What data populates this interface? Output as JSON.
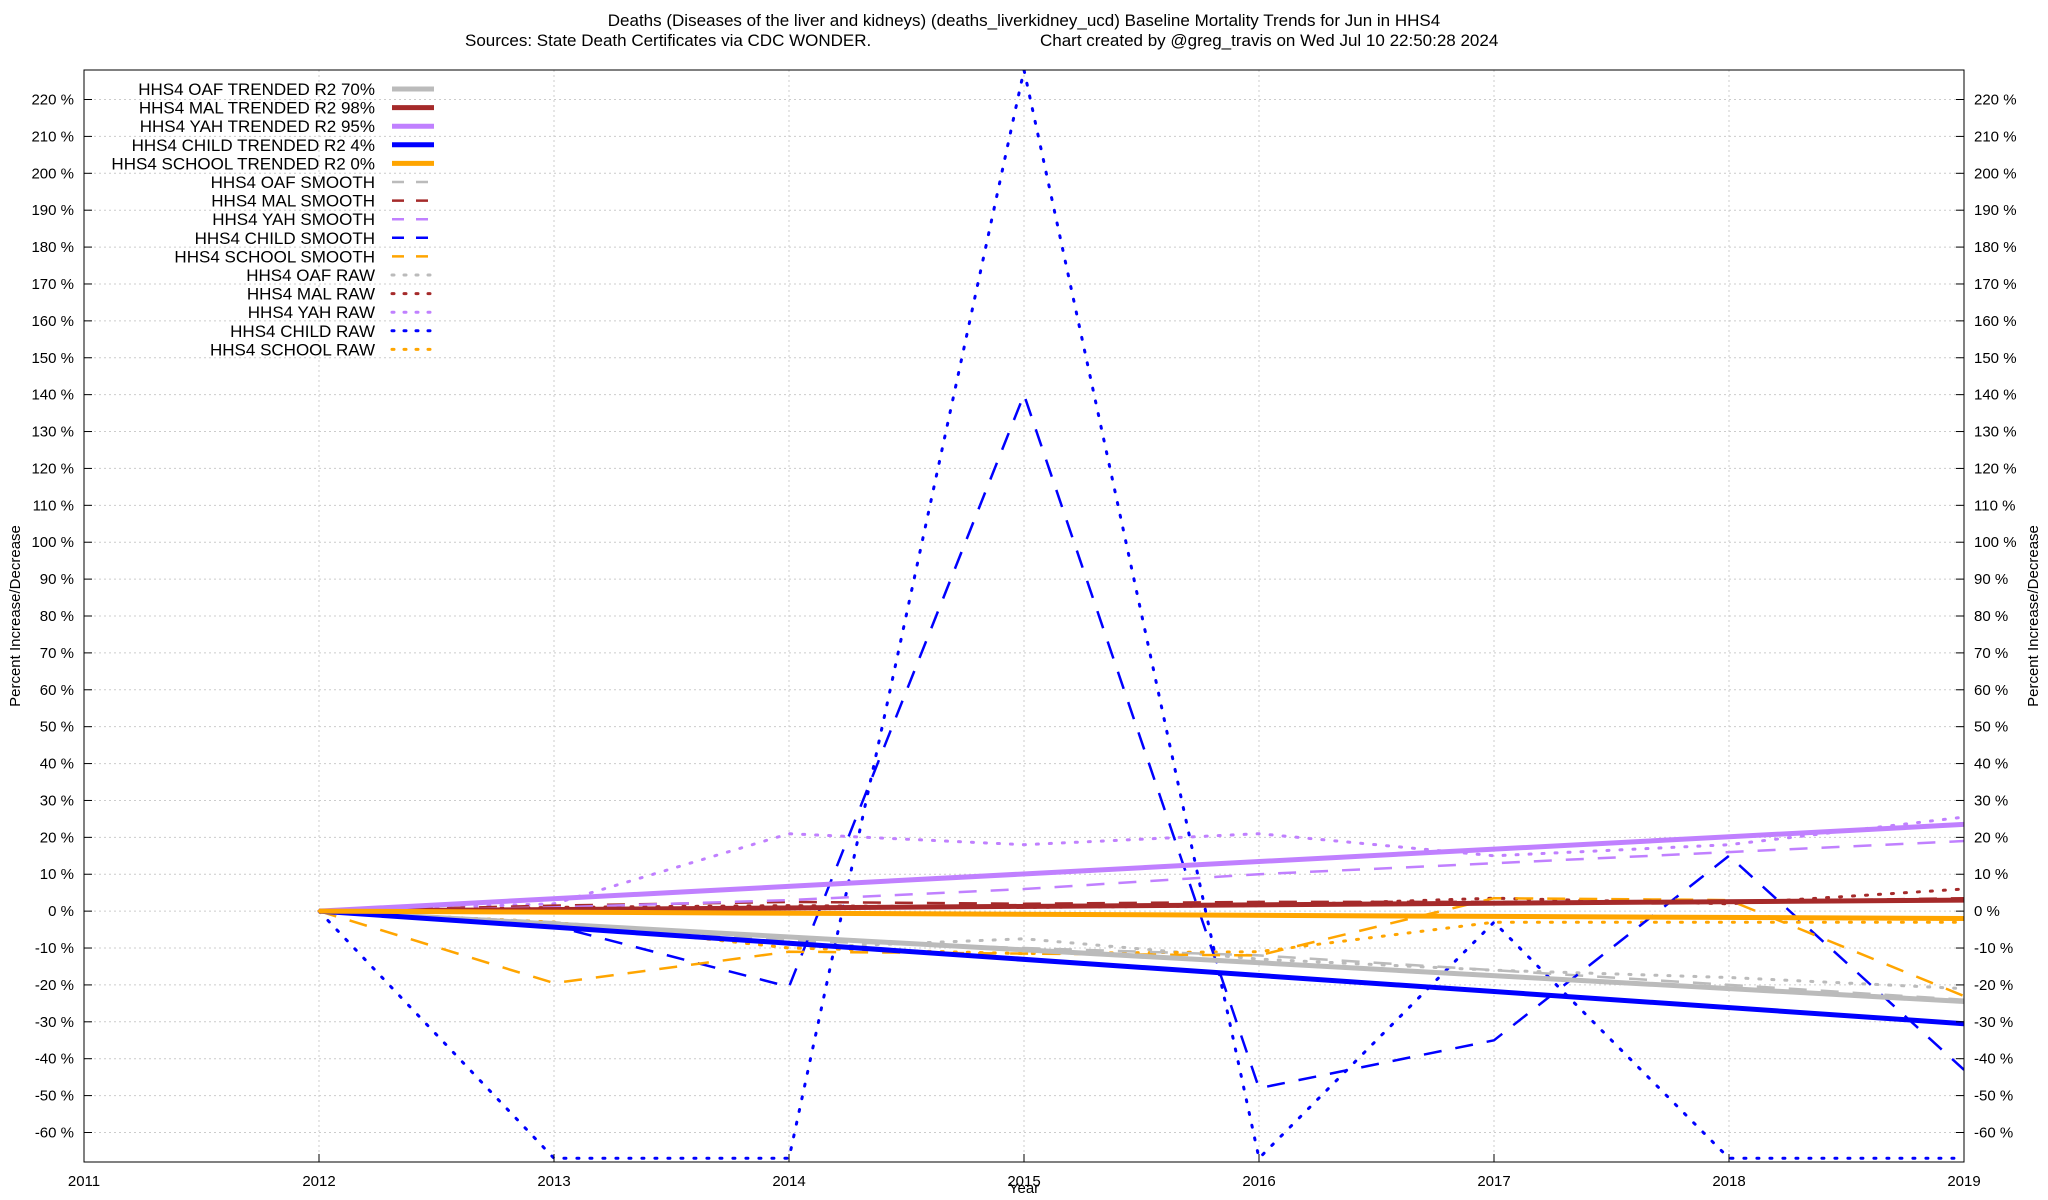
{
  "chart_data": {
    "type": "line",
    "title_line1": "Deaths (Diseases of the liver and kidneys) (deaths_liverkidney_ucd)  Baseline Mortality Trends for Jun in HHS4",
    "title_line2_left": "Sources: State Death Certificates via CDC WONDER.",
    "title_line2_right": "Chart created by @greg_travis on Wed Jul 10 22:50:28 2024",
    "xlabel": "Year",
    "ylabel": "Percent Increase/Decrease",
    "y2label": "Percent Increase/Decrease",
    "xlim": [
      2011,
      2019
    ],
    "ylim": [
      -68,
      228
    ],
    "x_ticks": [
      2011,
      2012,
      2013,
      2014,
      2015,
      2016,
      2017,
      2018,
      2019
    ],
    "y_ticks": [
      -60,
      -50,
      -40,
      -30,
      -20,
      -10,
      0,
      10,
      20,
      30,
      40,
      50,
      60,
      70,
      80,
      90,
      100,
      110,
      120,
      130,
      140,
      150,
      160,
      170,
      180,
      190,
      200,
      210,
      220
    ],
    "y_tick_suffix": " %",
    "grid": true,
    "legend_position": "top-left",
    "series": [
      {
        "name": "HHS4 OAF TRENDED R2  70%",
        "style": "solid",
        "color": "#bbbbbb",
        "x": [
          2012,
          2019
        ],
        "values": [
          0,
          -24.5
        ]
      },
      {
        "name": "HHS4 MAL TRENDED R2  98%",
        "style": "solid",
        "color": "#a52a2a",
        "x": [
          2012,
          2019
        ],
        "values": [
          0,
          3
        ]
      },
      {
        "name": "HHS4 YAH TRENDED R2  95%",
        "style": "solid",
        "color": "#c080ff",
        "x": [
          2012,
          2019
        ],
        "values": [
          0,
          23.5
        ]
      },
      {
        "name": "HHS4 CHILD TRENDED R2   4%",
        "style": "solid",
        "color": "#0000ff",
        "x": [
          2012,
          2019
        ],
        "values": [
          0,
          -30.5
        ]
      },
      {
        "name": "HHS4 SCHOOL TRENDED R2   0%",
        "style": "solid",
        "color": "#ffa500",
        "x": [
          2012,
          2019
        ],
        "values": [
          0,
          -2
        ]
      },
      {
        "name": "HHS4 OAF SMOOTH",
        "style": "dashed",
        "color": "#bbbbbb",
        "x": [
          2012,
          2013,
          2014,
          2015,
          2016,
          2017,
          2018,
          2019
        ],
        "values": [
          0,
          -3,
          -8,
          -10,
          -12,
          -16,
          -20,
          -24
        ]
      },
      {
        "name": "HHS4 MAL SMOOTH",
        "style": "dashed",
        "color": "#a52a2a",
        "x": [
          2012,
          2013,
          2014,
          2015,
          2016,
          2017,
          2018,
          2019
        ],
        "values": [
          0,
          1.5,
          2.5,
          2,
          2.5,
          2.5,
          2.5,
          3.5
        ]
      },
      {
        "name": "HHS4 YAH SMOOTH",
        "style": "dashed",
        "color": "#c080ff",
        "x": [
          2012,
          2013,
          2014,
          2015,
          2016,
          2017,
          2018,
          2019
        ],
        "values": [
          0,
          1,
          3,
          6,
          10,
          13,
          16,
          19
        ]
      },
      {
        "name": "HHS4 CHILD SMOOTH",
        "style": "dashed",
        "color": "#0000ff",
        "x": [
          2012,
          2013,
          2014,
          2015,
          2016,
          2017,
          2018,
          2019
        ],
        "values": [
          0,
          -4,
          -20.5,
          140,
          -48,
          -35,
          15,
          -43
        ]
      },
      {
        "name": "HHS4 SCHOOL SMOOTH",
        "style": "dashed",
        "color": "#ffa500",
        "x": [
          2012,
          2013,
          2014,
          2015,
          2016,
          2017,
          2018,
          2019
        ],
        "values": [
          0,
          -19.5,
          -11,
          -11.5,
          -12,
          3.5,
          3,
          -23
        ]
      },
      {
        "name": "HHS4 OAF RAW",
        "style": "dotted",
        "color": "#bbbbbb",
        "x": [
          2012,
          2013,
          2014,
          2015,
          2016,
          2017,
          2018,
          2019
        ],
        "values": [
          0,
          -3,
          -10,
          -7.5,
          -13,
          -16,
          -18,
          -21
        ]
      },
      {
        "name": "HHS4 MAL RAW",
        "style": "dotted",
        "color": "#a52a2a",
        "x": [
          2012,
          2013,
          2014,
          2015,
          2016,
          2017,
          2018,
          2019
        ],
        "values": [
          0,
          1,
          1.5,
          1,
          1.5,
          3.5,
          2,
          6
        ]
      },
      {
        "name": "HHS4 YAH RAW",
        "style": "dotted",
        "color": "#c080ff",
        "x": [
          2012,
          2013,
          2014,
          2015,
          2016,
          2017,
          2018,
          2019
        ],
        "values": [
          0,
          2,
          21,
          18,
          21,
          15,
          18,
          25.5
        ]
      },
      {
        "name": "HHS4 CHILD RAW",
        "style": "dotted",
        "color": "#0000ff",
        "x": [
          2012,
          2013,
          2014,
          2015,
          2016,
          2017,
          2018,
          2019
        ],
        "values": [
          0,
          -67,
          -67,
          228,
          -67,
          -3,
          -67,
          -67
        ]
      },
      {
        "name": "HHS4 SCHOOL RAW",
        "style": "dotted",
        "color": "#ffa500",
        "x": [
          2012,
          2013,
          2014,
          2015,
          2016,
          2017,
          2018,
          2019
        ],
        "values": [
          0,
          -3,
          -10,
          -11.5,
          -11,
          -3,
          -3,
          -3
        ]
      }
    ]
  }
}
